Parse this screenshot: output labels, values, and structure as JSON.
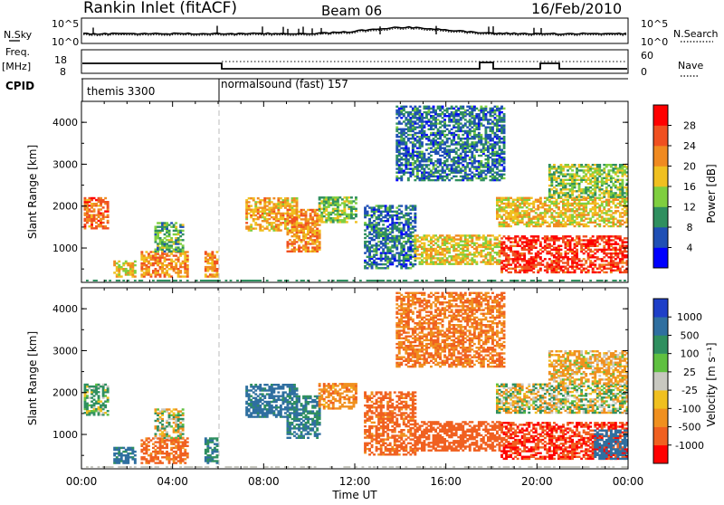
{
  "header": {
    "station": "Rankin Inlet (fitACF)",
    "beam": "Beam 06",
    "date": "16/Feb/2010"
  },
  "top_panel": {
    "left_label": "N.Sky",
    "left_ticks": [
      "10^5",
      "10^0"
    ],
    "right_label": "N.Search",
    "right_ticks": [
      "10^5",
      "10^0"
    ]
  },
  "freq_panel": {
    "left_label_1": "Freq.",
    "left_label_2": "[MHz]",
    "left_ticks": [
      "18",
      "8"
    ],
    "right_label": "Nave",
    "right_ticks": [
      "60",
      "0"
    ]
  },
  "cpid": {
    "label": "CPID",
    "segments": [
      {
        "name": "themis 3300",
        "start_hour": 0
      },
      {
        "name": "normalsound (fast) 157",
        "start_hour": 6
      }
    ]
  },
  "axes": {
    "ylabel": "Slant Range [km]",
    "xlabel": "Time UT",
    "x_ticks": [
      "00:00",
      "04:00",
      "08:00",
      "12:00",
      "16:00",
      "20:00",
      "00:00"
    ],
    "y_ticks": [
      "1000",
      "2000",
      "3000",
      "4000"
    ]
  },
  "power_colorbar": {
    "label": "Power [dB]",
    "ticks": [
      "4",
      "8",
      "12",
      "16",
      "20",
      "24",
      "28"
    ],
    "colors": [
      "#0000ff",
      "#1f4fb5",
      "#2f8f5f",
      "#7fcf3f",
      "#f0c020",
      "#f08a20",
      "#f05020",
      "#ff0000"
    ]
  },
  "velocity_colorbar": {
    "label": "Velocity [m s⁻¹]",
    "ticks": [
      "1000",
      "500",
      "100",
      "25",
      "-25",
      "-100",
      "-500",
      "-1000"
    ],
    "colors": [
      "#1e3fc8",
      "#2f6fa0",
      "#2f8f5f",
      "#5fc040",
      "#c8c8c0",
      "#f0c020",
      "#f0901f",
      "#f06020",
      "#ff0000"
    ]
  },
  "chart_data": [
    {
      "type": "heatmap",
      "title": "Power",
      "xlabel": "Time UT",
      "ylabel": "Slant Range [km]",
      "xlim": [
        0,
        24
      ],
      "ylim": [
        180,
        4500
      ],
      "colorbar_label": "Power [dB]",
      "colorbar_range": [
        0,
        32
      ],
      "regions": [
        {
          "t0": 0.1,
          "t1": 1.1,
          "r0": 1450,
          "r1": 2200,
          "value": 24
        },
        {
          "t0": 1.4,
          "t1": 2.4,
          "r0": 300,
          "r1": 700,
          "value": 18
        },
        {
          "t0": 2.6,
          "t1": 4.6,
          "r0": 300,
          "r1": 900,
          "value": 22
        },
        {
          "t0": 3.2,
          "t1": 4.4,
          "r0": 900,
          "r1": 1600,
          "value": 12
        },
        {
          "t0": 5.4,
          "t1": 5.9,
          "r0": 300,
          "r1": 900,
          "value": 22
        },
        {
          "t0": 7.2,
          "t1": 9.4,
          "r0": 1400,
          "r1": 2200,
          "value": 20
        },
        {
          "t0": 9.0,
          "t1": 10.4,
          "r0": 900,
          "r1": 1900,
          "value": 22
        },
        {
          "t0": 10.4,
          "t1": 12.0,
          "r0": 1600,
          "r1": 2200,
          "value": 14
        },
        {
          "t0": 12.4,
          "t1": 14.6,
          "r0": 500,
          "r1": 2000,
          "value": 8
        },
        {
          "t0": 14.6,
          "t1": 18.4,
          "r0": 600,
          "r1": 1300,
          "value": 18
        },
        {
          "t0": 18.4,
          "t1": 24.0,
          "r0": 400,
          "r1": 1300,
          "value": 28
        },
        {
          "t0": 18.2,
          "t1": 24.0,
          "r0": 1500,
          "r1": 2200,
          "value": 18
        },
        {
          "t0": 20.5,
          "t1": 24.0,
          "r0": 2200,
          "r1": 3000,
          "value": 14
        },
        {
          "t0": 13.8,
          "t1": 18.6,
          "r0": 2600,
          "r1": 4400,
          "value": 8
        }
      ]
    },
    {
      "type": "heatmap",
      "title": "Velocity",
      "xlabel": "Time UT",
      "ylabel": "Slant Range [km]",
      "xlim": [
        0,
        24
      ],
      "ylim": [
        180,
        4500
      ],
      "colorbar_label": "Velocity [m s⁻¹]",
      "colorbar_range": [
        -1000,
        1000
      ],
      "regions": [
        {
          "t0": 0.1,
          "t1": 1.1,
          "r0": 1450,
          "r1": 2200,
          "value": 100
        },
        {
          "t0": 1.4,
          "t1": 2.4,
          "r0": 300,
          "r1": 700,
          "value": 400
        },
        {
          "t0": 2.6,
          "t1": 4.6,
          "r0": 300,
          "r1": 900,
          "value": -400
        },
        {
          "t0": 3.2,
          "t1": 4.4,
          "r0": 900,
          "r1": 1600,
          "value": 0
        },
        {
          "t0": 5.4,
          "t1": 5.9,
          "r0": 300,
          "r1": 900,
          "value": 300
        },
        {
          "t0": 7.2,
          "t1": 9.4,
          "r0": 1400,
          "r1": 2200,
          "value": 400
        },
        {
          "t0": 9.0,
          "t1": 10.4,
          "r0": 900,
          "r1": 1900,
          "value": 300
        },
        {
          "t0": 10.4,
          "t1": 12.0,
          "r0": 1600,
          "r1": 2200,
          "value": -200
        },
        {
          "t0": 12.4,
          "t1": 14.6,
          "r0": 500,
          "r1": 2000,
          "value": -400
        },
        {
          "t0": 14.6,
          "t1": 18.4,
          "r0": 600,
          "r1": 1300,
          "value": -500
        },
        {
          "t0": 18.4,
          "t1": 24.0,
          "r0": 400,
          "r1": 1300,
          "value": -700
        },
        {
          "t0": 22.5,
          "t1": 24.0,
          "r0": 400,
          "r1": 1100,
          "value": 500
        },
        {
          "t0": 18.2,
          "t1": 24.0,
          "r0": 1500,
          "r1": 2200,
          "value": 0
        },
        {
          "t0": 20.5,
          "t1": 24.0,
          "r0": 2200,
          "r1": 3000,
          "value": -100
        },
        {
          "t0": 13.8,
          "t1": 18.6,
          "r0": 2600,
          "r1": 4400,
          "value": -300
        }
      ]
    }
  ]
}
